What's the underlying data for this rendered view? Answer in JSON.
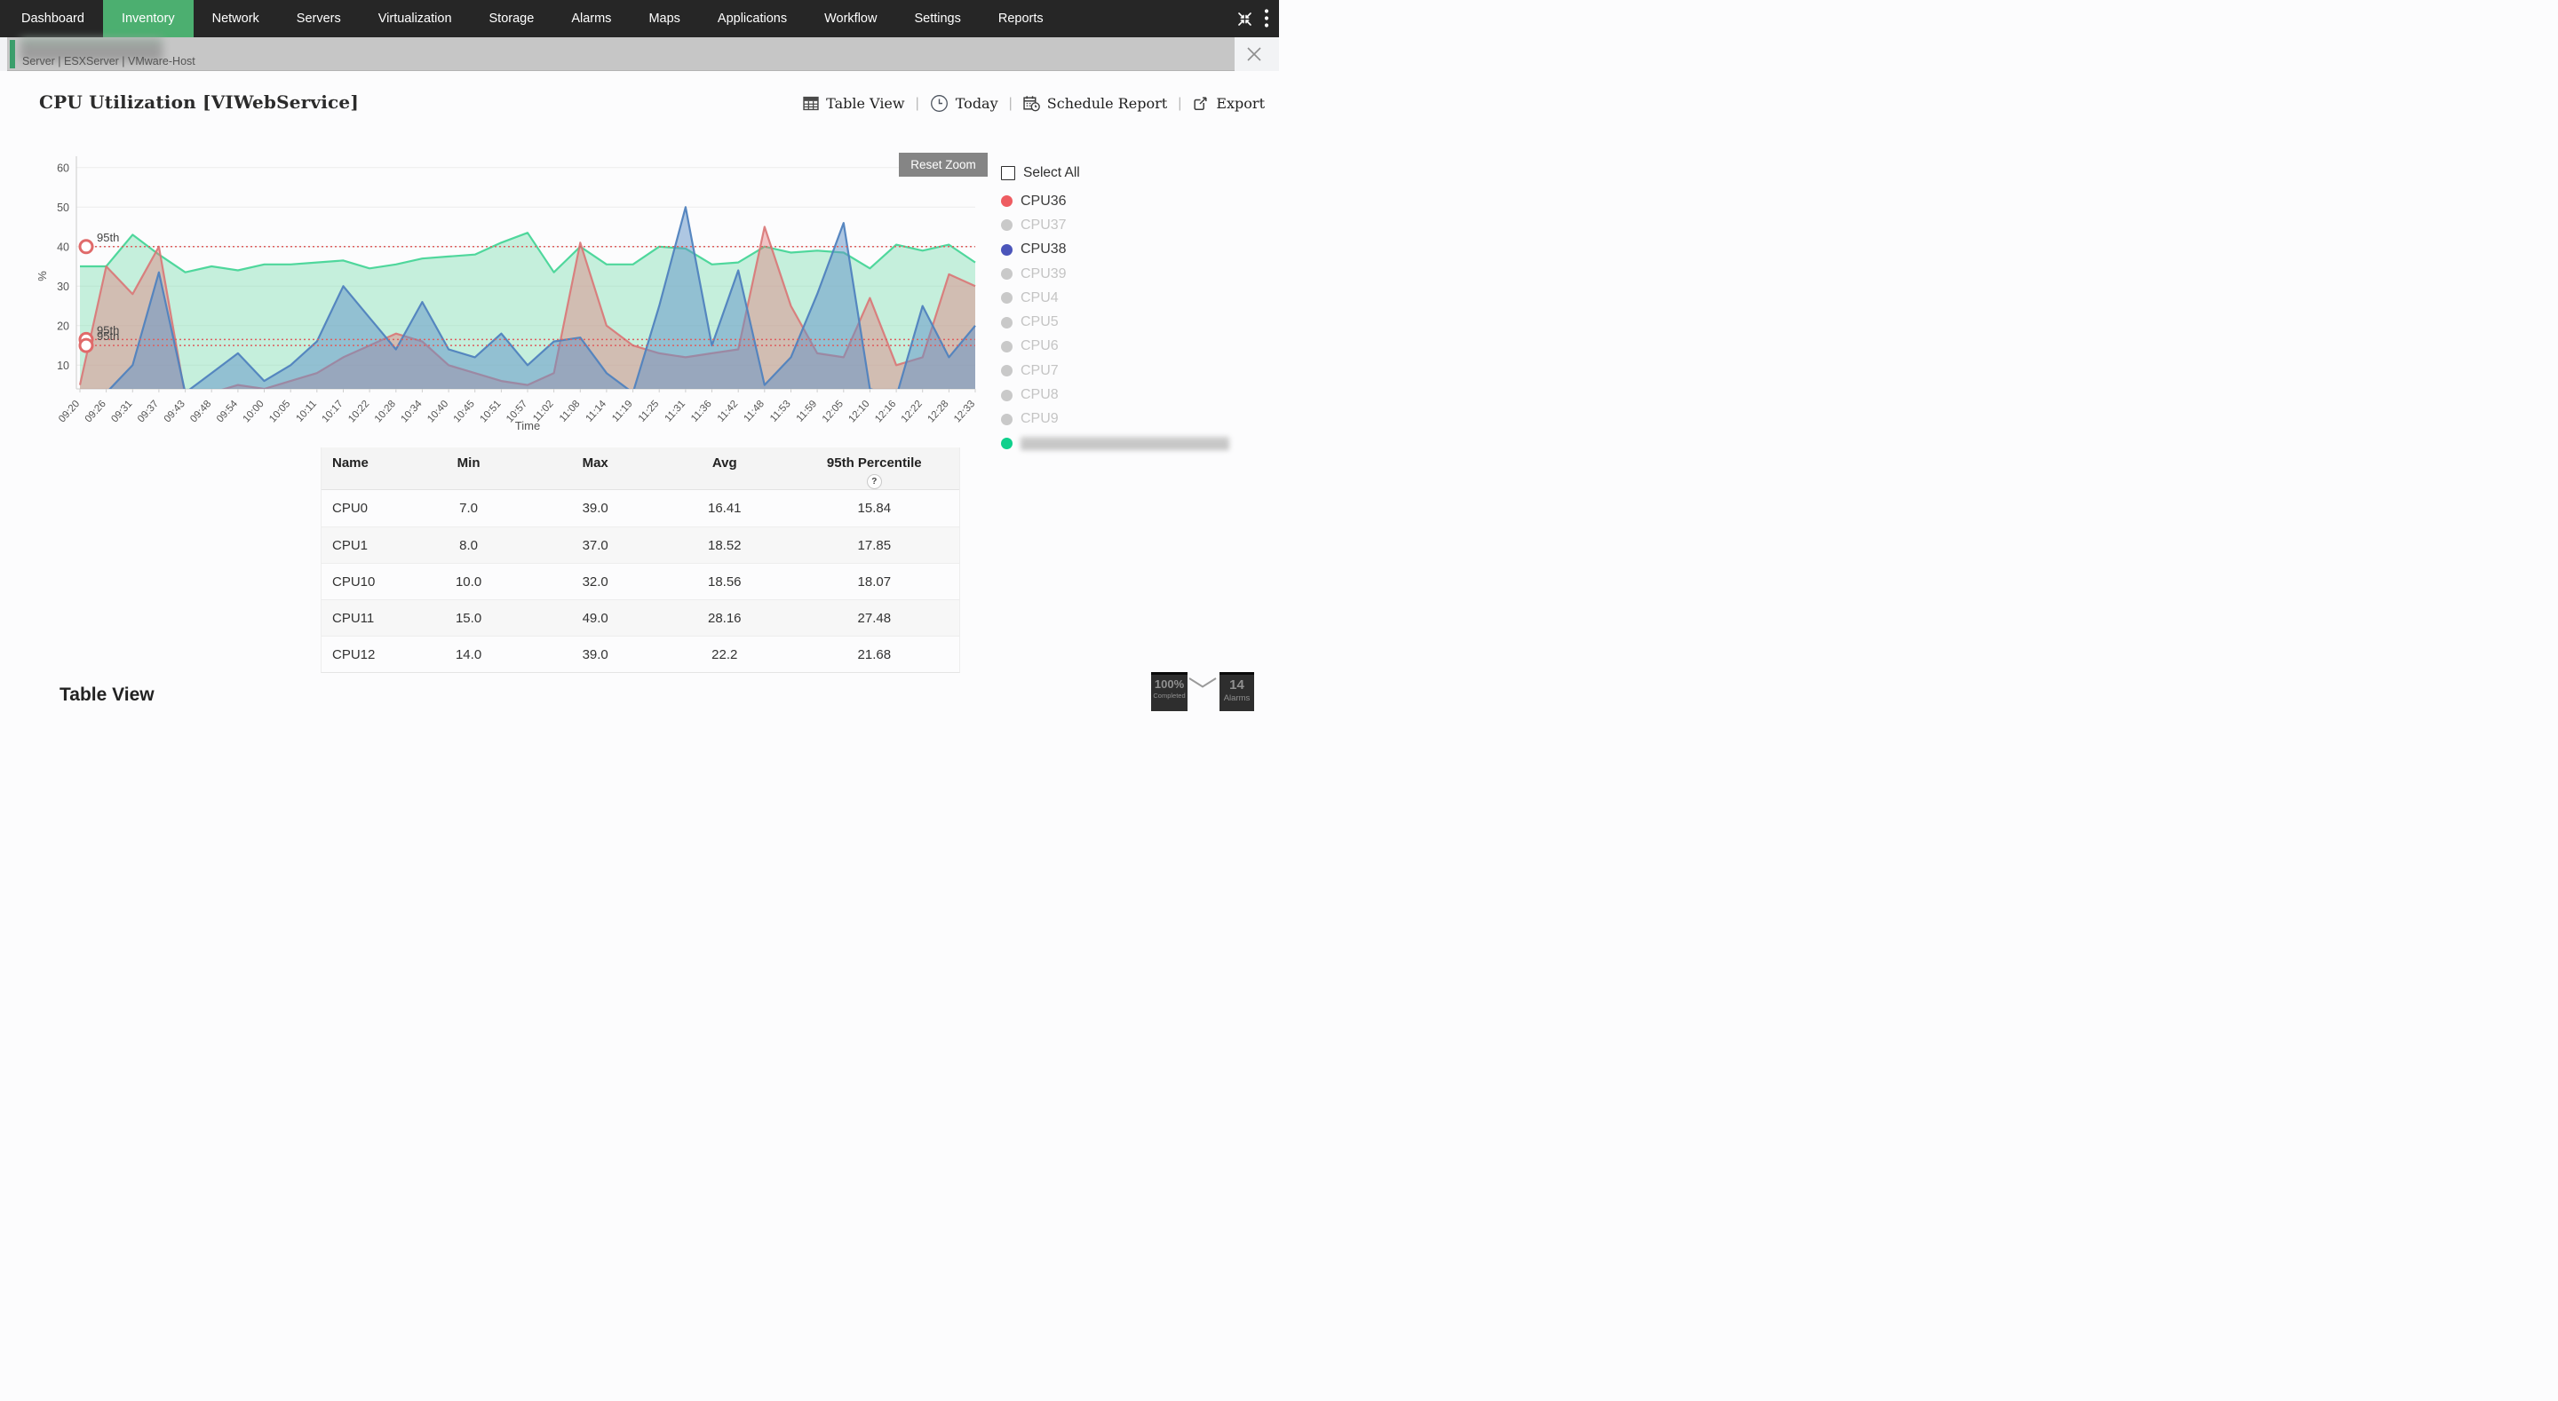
{
  "nav": {
    "bg_color": "#262626",
    "active_color": "#4caf70",
    "items": [
      {
        "label": "Dashboard",
        "active": false
      },
      {
        "label": "Inventory",
        "active": true
      },
      {
        "label": "Network",
        "active": false
      },
      {
        "label": "Servers",
        "active": false
      },
      {
        "label": "Virtualization",
        "active": false
      },
      {
        "label": "Storage",
        "active": false
      },
      {
        "label": "Alarms",
        "active": false
      },
      {
        "label": "Maps",
        "active": false
      },
      {
        "label": "Applications",
        "active": false
      },
      {
        "label": "Workflow",
        "active": false
      },
      {
        "label": "Settings",
        "active": false
      },
      {
        "label": "Reports",
        "active": false
      }
    ]
  },
  "breadcrumb": {
    "device_name_blurred": true,
    "path_text": "Server | ESXServer  | VMware-Host"
  },
  "header": {
    "title": "CPU Utilization [VIWebService]",
    "actions": [
      {
        "label": "Table View",
        "icon": "table-grid-icon"
      },
      {
        "label": "Today",
        "icon": "clock-icon"
      },
      {
        "label": "Schedule Report",
        "icon": "calendar-clock-icon"
      },
      {
        "label": "Export",
        "icon": "export-icon"
      }
    ]
  },
  "chart": {
    "reset_zoom_label": "Reset Zoom"
  },
  "chart_data": {
    "type": "area",
    "xlabel": "Time",
    "ylabel": "%",
    "ylim": [
      4,
      64
    ],
    "yticks": [
      10,
      20,
      30,
      40,
      50,
      60
    ],
    "grid": true,
    "legend_position": "right",
    "x": [
      "09:20",
      "09:26",
      "09:31",
      "09:37",
      "09:43",
      "09:48",
      "09:54",
      "10:00",
      "10:05",
      "10:11",
      "10:17",
      "10:22",
      "10:28",
      "10:34",
      "10:40",
      "10:45",
      "10:51",
      "10:57",
      "11:02",
      "11:08",
      "11:14",
      "11:19",
      "11:25",
      "11:31",
      "11:36",
      "11:42",
      "11:48",
      "11:53",
      "11:59",
      "12:05",
      "12:10",
      "12:16",
      "12:22",
      "12:28",
      "12:33"
    ],
    "series": [
      {
        "name": "CPU36",
        "color": "#ee5c61",
        "stroke": "rgba(217,118,118,0.9)",
        "fill": "rgba(226,120,120,0.42)",
        "values": [
          5,
          35,
          28,
          40,
          2,
          3,
          5,
          4,
          6,
          8,
          12,
          15,
          18,
          16,
          10,
          8,
          6,
          5,
          8,
          41,
          20,
          15,
          13,
          12,
          13,
          14,
          45,
          25,
          13,
          12,
          27,
          10,
          12,
          33,
          30
        ]
      },
      {
        "name": "CPU38",
        "color": "#4b55ba",
        "stroke": "rgba(80,130,190,0.95)",
        "fill": "rgba(95,145,200,0.5)",
        "values": [
          2,
          3,
          10,
          33.5,
          3,
          8,
          13,
          6,
          10,
          16,
          30,
          22,
          14,
          26,
          14,
          12,
          18,
          10,
          16,
          17,
          8,
          3,
          25,
          50,
          15,
          34,
          5,
          12,
          28,
          46,
          4,
          2,
          25,
          12,
          20
        ]
      },
      {
        "name": "",
        "label_blurred": true,
        "color": "#0fd08c",
        "stroke": "#4fd79c",
        "fill": "rgba(130,225,180,0.45)",
        "values": [
          35,
          35,
          43,
          38,
          33.5,
          35,
          34,
          35.5,
          35.5,
          36,
          36.5,
          34.5,
          35.5,
          37,
          37.5,
          38,
          41,
          43.5,
          33.5,
          40,
          35.5,
          35.5,
          40,
          39.5,
          35.5,
          36,
          40,
          38.5,
          39,
          38.5,
          34.5,
          40.5,
          39,
          40.5,
          36
        ]
      }
    ],
    "percentile_lines": [
      {
        "label": "95th",
        "value": 40
      },
      {
        "label": "95th",
        "value": 16.5
      },
      {
        "label": "95th",
        "value": 15
      }
    ]
  },
  "legend": {
    "select_all_label": "Select All",
    "items": [
      {
        "label": "CPU36",
        "color": "#ee5c61",
        "selected": true
      },
      {
        "label": "CPU37",
        "color": "#c9c9c9",
        "selected": false
      },
      {
        "label": "CPU38",
        "color": "#4b55ba",
        "selected": true
      },
      {
        "label": "CPU39",
        "color": "#c9c9c9",
        "selected": false
      },
      {
        "label": "CPU4",
        "color": "#c9c9c9",
        "selected": false
      },
      {
        "label": "CPU5",
        "color": "#c9c9c9",
        "selected": false
      },
      {
        "label": "CPU6",
        "color": "#c9c9c9",
        "selected": false
      },
      {
        "label": "CPU7",
        "color": "#c9c9c9",
        "selected": false
      },
      {
        "label": "CPU8",
        "color": "#c9c9c9",
        "selected": false
      },
      {
        "label": "CPU9",
        "color": "#c9c9c9",
        "selected": false
      },
      {
        "label": "",
        "color": "#0fd08c",
        "selected": true,
        "label_blurred": true
      }
    ]
  },
  "stats_table": {
    "columns": [
      "Name",
      "Min",
      "Max",
      "Avg",
      "95th Percentile"
    ],
    "help_badge": "?",
    "rows": [
      [
        "CPU0",
        "7.0",
        "39.0",
        "16.41",
        "15.84"
      ],
      [
        "CPU1",
        "8.0",
        "37.0",
        "18.52",
        "17.85"
      ],
      [
        "CPU10",
        "10.0",
        "32.0",
        "18.56",
        "18.07"
      ],
      [
        "CPU11",
        "15.0",
        "49.0",
        "28.16",
        "27.48"
      ],
      [
        "CPU12",
        "14.0",
        "39.0",
        "22.2",
        "21.68"
      ]
    ]
  },
  "footer": {
    "section_title": "Table View",
    "progress_value": "100%",
    "progress_label": "Completed",
    "alarms_value": "14",
    "alarms_label": "Alarms"
  }
}
